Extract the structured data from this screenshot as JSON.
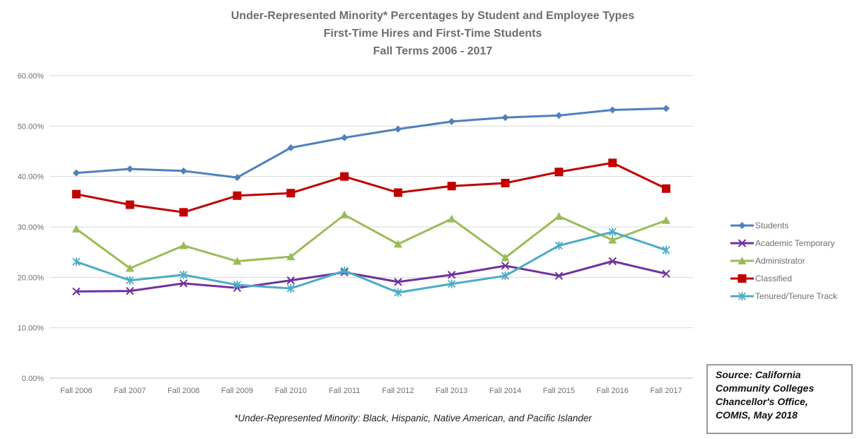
{
  "chart_data": {
    "type": "line",
    "title": [
      "Under-Represented Minority* Percentages by Student and Employee Types",
      "First-Time Hires and First-Time Students",
      "Fall Terms 2006 - 2017"
    ],
    "categories": [
      "Fall 2006",
      "Fall 2007",
      "Fall 2008",
      "Fall 2009",
      "Fall 2010",
      "Fall 2011",
      "Fall 2012",
      "Fall 2013",
      "Fall 2014",
      "Fall 2015",
      "Fall 2016",
      "Fall 2017"
    ],
    "ylim": [
      0,
      60
    ],
    "yticks": [
      "0.00%",
      "10.00%",
      "20.00%",
      "30.00%",
      "40.00%",
      "50.00%",
      "60.00%"
    ],
    "grid": true,
    "legend_position": "right",
    "series": [
      {
        "name": "Students",
        "color": "#4F81BD",
        "marker": "diamond",
        "values": [
          40.7,
          41.5,
          41.1,
          39.8,
          45.7,
          47.7,
          49.4,
          50.9,
          51.7,
          52.1,
          53.2,
          53.5
        ]
      },
      {
        "name": "Academic Temporary",
        "color": "#7030A0",
        "marker": "x",
        "values": [
          17.2,
          17.3,
          18.8,
          17.9,
          19.4,
          21.0,
          19.1,
          20.5,
          22.3,
          20.3,
          23.2,
          20.7
        ]
      },
      {
        "name": "Administrator",
        "color": "#9BBB59",
        "marker": "triangle",
        "values": [
          29.6,
          21.8,
          26.3,
          23.2,
          24.1,
          32.4,
          26.6,
          31.6,
          23.9,
          32.1,
          27.4,
          31.3
        ]
      },
      {
        "name": "Classified",
        "color": "#C00000",
        "marker": "square",
        "values": [
          36.5,
          34.4,
          32.9,
          36.2,
          36.7,
          40.0,
          36.8,
          38.1,
          38.7,
          40.9,
          42.7,
          37.6
        ]
      },
      {
        "name": "Tenured/Tenure Track",
        "color": "#4BACC6",
        "marker": "star",
        "values": [
          23.1,
          19.4,
          20.5,
          18.5,
          17.8,
          21.3,
          17.0,
          18.7,
          20.3,
          26.3,
          29.0,
          25.4
        ]
      }
    ],
    "footnote": "*Under-Represented Minority: Black, Hispanic, Native American, and Pacific Islander",
    "source": [
      "Source: California",
      "Community Colleges",
      "Chancellor's Office,",
      "COMIS, May 2018"
    ]
  }
}
